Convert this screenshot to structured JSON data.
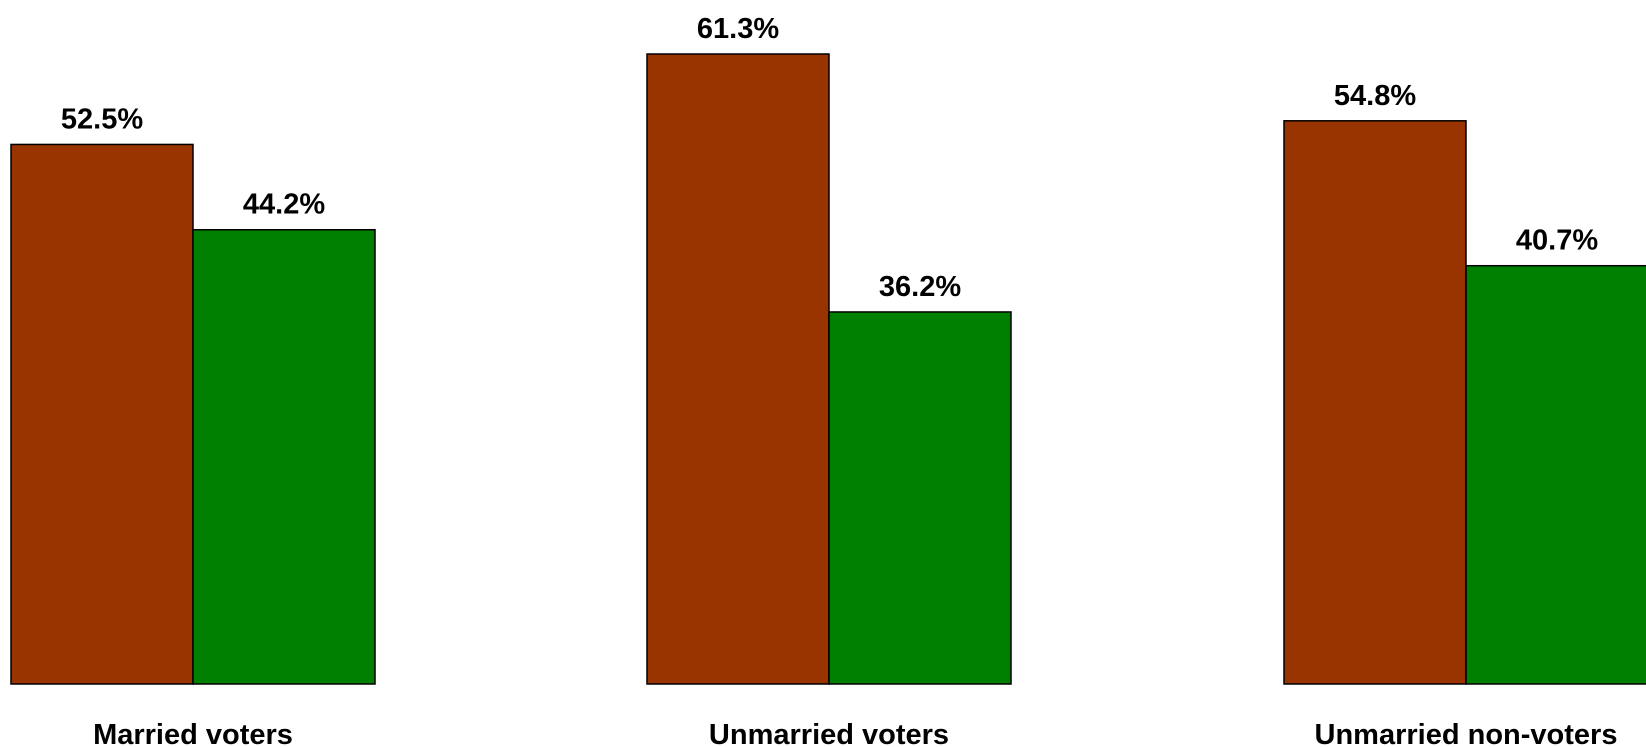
{
  "chart_data": {
    "type": "bar",
    "categories": [
      "Married voters",
      "Unmarried voters",
      "Unmarried non-voters"
    ],
    "series": [
      {
        "color": "#993300",
        "values": [
          52.5,
          61.3,
          54.8
        ]
      },
      {
        "color": "#008000",
        "values": [
          44.2,
          36.2,
          40.7
        ]
      }
    ],
    "value_labels": [
      [
        "52.5%",
        "61.3%",
        "54.8%"
      ],
      [
        "44.2%",
        "36.2%",
        "40.7%"
      ]
    ],
    "title": "",
    "xlabel": "",
    "ylabel": "",
    "ylim": [
      0,
      61.3
    ],
    "grid": false,
    "legend": "none",
    "bar_outline_color": "#000000",
    "background_color": "#ffffff"
  }
}
